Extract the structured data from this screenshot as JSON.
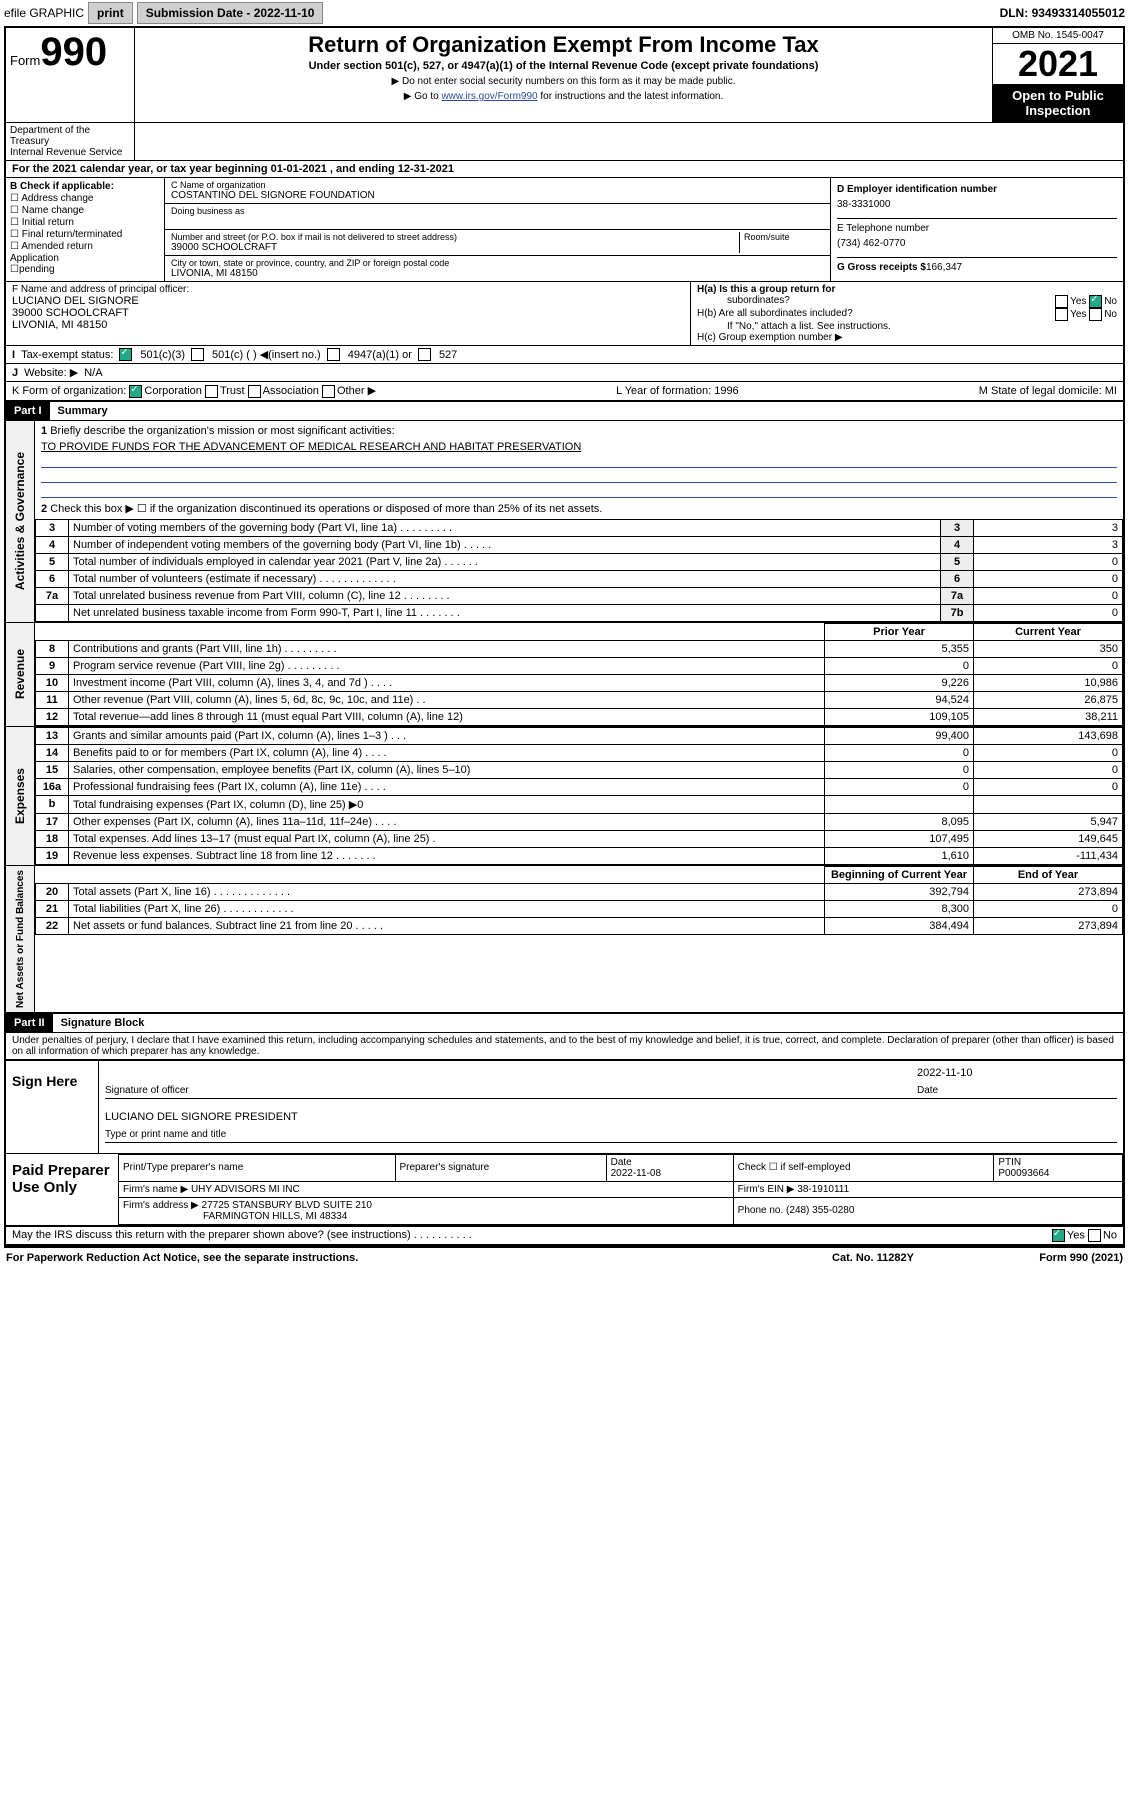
{
  "topbar": {
    "efile": "efile GRAPHIC",
    "print": "print",
    "subdate_lbl": "Submission Date - ",
    "subdate": "2022-11-10",
    "dln_lbl": "DLN: ",
    "dln": "93493314055012"
  },
  "header": {
    "form": "Form",
    "num": "990",
    "title": "Return of Organization Exempt From Income Tax",
    "sub": "Under section 501(c), 527, or 4947(a)(1) of the Internal Revenue Code (except private foundations)",
    "note1": "▶ Do not enter social security numbers on this form as it may be made public.",
    "note2_pre": "▶ Go to ",
    "note2_link": "www.irs.gov/Form990",
    "note2_post": " for instructions and the latest information.",
    "omb": "OMB No. 1545-0047",
    "year": "2021",
    "inspect": "Open to Public Inspection",
    "dept": "Department of the Treasury\nInternal Revenue Service"
  },
  "periodA": "For the 2021 calendar year, or tax year beginning 01-01-2021    , and ending 12-31-2021",
  "boxB": {
    "lbl": "B Check if applicable:",
    "opts": [
      "☐ Address change",
      "☐ Name change",
      "☐ Initial return",
      "☐ Final return/terminated",
      "☐ Amended return",
      "  Application\n☐pending"
    ]
  },
  "boxC": {
    "name_lbl": "C Name of organization",
    "name": "COSTANTINO DEL SIGNORE FOUNDATION",
    "dba_lbl": "Doing business as",
    "addr_lbl": "Number and street (or P.O. box if mail is not delivered to street address)",
    "room_lbl": "Room/suite",
    "addr": "39000 SCHOOLCRAFT",
    "city_lbl": "City or town, state or province, country, and ZIP or foreign postal code",
    "city": "LIVONIA, MI  48150"
  },
  "boxD": {
    "lbl": "D Employer identification number",
    "val": "38-3331000"
  },
  "boxE": {
    "lbl": "E Telephone number",
    "val": "(734) 462-0770"
  },
  "boxG": {
    "lbl": "G Gross receipts $",
    "val": "166,347"
  },
  "boxF": {
    "lbl": "F Name and address of principal officer:",
    "lines": [
      "LUCIANO DEL SIGNORE",
      "39000 SCHOOLCRAFT",
      "LIVONIA, MI  48150"
    ]
  },
  "boxH": {
    "a": "H(a)  Is this a group return for",
    "a2": "subordinates?",
    "b": "H(b)  Are all subordinates included?",
    "note": "If \"No,\" attach a list. See instructions.",
    "c": "H(c)  Group exemption number ▶",
    "yes": "Yes",
    "no": "No"
  },
  "boxI": {
    "lbl": "Tax-exempt status:",
    "c3": "501(c)(3)",
    "c": "501(c) (   ) ◀(insert no.)",
    "a1": "4947(a)(1) or",
    "s527": "527"
  },
  "boxJ": {
    "lbl": "Website: ▶",
    "val": "N/A"
  },
  "boxK": {
    "lbl": "K Form of organization:",
    "opts": [
      "Corporation",
      "Trust",
      "Association",
      "Other ▶"
    ]
  },
  "boxL": {
    "lbl": "L Year of formation:",
    "val": "1996"
  },
  "boxM": {
    "lbl": "M State of legal domicile:",
    "val": "MI"
  },
  "partI": {
    "hdr": "Part I",
    "title": "Summary"
  },
  "gov": {
    "label": "Activities & Governance",
    "line1": "Briefly describe the organization's mission or most significant activities:",
    "mission": "TO PROVIDE FUNDS FOR THE ADVANCEMENT OF MEDICAL RESEARCH AND HABITAT PRESERVATION",
    "line2": "Check this box ▶ ☐  if the organization discontinued its operations or disposed of more than 25% of its net assets.",
    "rows": [
      {
        "n": "3",
        "d": "Number of voting members of the governing body (Part VI, line 1a)   .    .    .    .    .    .    .    .    .",
        "b": "3",
        "v": "3"
      },
      {
        "n": "4",
        "d": "Number of independent voting members of the governing body (Part VI, line 1b)    .    .    .    .    .",
        "b": "4",
        "v": "3"
      },
      {
        "n": "5",
        "d": "Total number of individuals employed in calendar year 2021 (Part V, line 2a)    .    .    .    .    .    .",
        "b": "5",
        "v": "0"
      },
      {
        "n": "6",
        "d": "Total number of volunteers (estimate if necessary)    .    .    .    .    .    .    .    .    .    .    .    .    .",
        "b": "6",
        "v": "0"
      },
      {
        "n": "7a",
        "d": "Total unrelated business revenue from Part VIII, column (C), line 12    .    .    .    .    .    .    .    .",
        "b": "7a",
        "v": "0"
      },
      {
        "n": "",
        "d": "Net unrelated business taxable income from Form 990-T, Part I, line 11    .    .    .    .    .    .    .",
        "b": "7b",
        "v": "0"
      }
    ]
  },
  "rev": {
    "label": "Revenue",
    "th": [
      "Prior Year",
      "Current Year"
    ],
    "rows": [
      {
        "n": "8",
        "d": "Contributions and grants (Part VIII, line 1h)    .    .    .    .    .    .    .    .    .",
        "p": "5,355",
        "c": "350"
      },
      {
        "n": "9",
        "d": "Program service revenue (Part VIII, line 2g)    .    .    .    .    .    .    .    .    .",
        "p": "0",
        "c": "0"
      },
      {
        "n": "10",
        "d": "Investment income (Part VIII, column (A), lines 3, 4, and 7d )    .    .    .    .",
        "p": "9,226",
        "c": "10,986"
      },
      {
        "n": "11",
        "d": "Other revenue (Part VIII, column (A), lines 5, 6d, 8c, 9c, 10c, and 11e)    .    .",
        "p": "94,524",
        "c": "26,875"
      },
      {
        "n": "12",
        "d": "Total revenue—add lines 8 through 11 (must equal Part VIII, column (A), line 12)",
        "p": "109,105",
        "c": "38,211"
      }
    ]
  },
  "exp": {
    "label": "Expenses",
    "rows": [
      {
        "n": "13",
        "d": "Grants and similar amounts paid (Part IX, column (A), lines 1–3 )    .    .    .",
        "p": "99,400",
        "c": "143,698"
      },
      {
        "n": "14",
        "d": "Benefits paid to or for members (Part IX, column (A), line 4)    .    .    .    .",
        "p": "0",
        "c": "0"
      },
      {
        "n": "15",
        "d": "Salaries, other compensation, employee benefits (Part IX, column (A), lines 5–10)",
        "p": "0",
        "c": "0"
      },
      {
        "n": "16a",
        "d": "Professional fundraising fees (Part IX, column (A), line 11e)    .    .    .    .",
        "p": "0",
        "c": "0"
      },
      {
        "n": "b",
        "d": "Total fundraising expenses (Part IX, column (D), line 25) ▶0",
        "p": "",
        "c": "",
        "gray": true
      },
      {
        "n": "17",
        "d": "Other expenses (Part IX, column (A), lines 11a–11d, 11f–24e)    .    .    .    .",
        "p": "8,095",
        "c": "5,947"
      },
      {
        "n": "18",
        "d": "Total expenses. Add lines 13–17 (must equal Part IX, column (A), line 25)    .",
        "p": "107,495",
        "c": "149,645"
      },
      {
        "n": "19",
        "d": "Revenue less expenses. Subtract line 18 from line 12    .    .    .    .    .    .    .",
        "p": "1,610",
        "c": "-111,434"
      }
    ]
  },
  "net": {
    "label": "Net Assets or Fund Balances",
    "th": [
      "Beginning of Current Year",
      "End of Year"
    ],
    "rows": [
      {
        "n": "20",
        "d": "Total assets (Part X, line 16)    .    .    .    .    .    .    .    .    .    .    .    .    .",
        "p": "392,794",
        "c": "273,894"
      },
      {
        "n": "21",
        "d": "Total liabilities (Part X, line 26)    .    .    .    .    .    .    .    .    .    .    .    .",
        "p": "8,300",
        "c": "0"
      },
      {
        "n": "22",
        "d": "Net assets or fund balances. Subtract line 21 from line 20    .    .    .    .    .",
        "p": "384,494",
        "c": "273,894"
      }
    ]
  },
  "partII": {
    "hdr": "Part II",
    "title": "Signature Block"
  },
  "penalty": "Under penalties of perjury, I declare that I have examined this return, including accompanying schedules and statements, and to the best of my knowledge and belief, it is true, correct, and complete. Declaration of preparer (other than officer) is based on all information of which preparer has any knowledge.",
  "sign": {
    "lbl": "Sign Here",
    "date": "2022-11-10",
    "sig_lbl": "Signature of officer",
    "date_lbl": "Date",
    "name": "LUCIANO DEL SIGNORE  PRESIDENT",
    "name_lbl": "Type or print name and title"
  },
  "prep": {
    "lbl": "Paid Preparer Use Only",
    "h": [
      "Print/Type preparer's name",
      "Preparer's signature",
      "Date",
      "Check ☐ if self-employed",
      "PTIN"
    ],
    "date": "2022-11-08",
    "ptin": "P00093664",
    "firm_lbl": "Firm's name    ▶",
    "firm": "UHY ADVISORS MI INC",
    "ein_lbl": "Firm's EIN ▶",
    "ein": "38-1910111",
    "addr_lbl": "Firm's address ▶",
    "addr1": "27725 STANSBURY BLVD SUITE 210",
    "addr2": "FARMINGTON HILLS, MI  48334",
    "phone_lbl": "Phone no.",
    "phone": "(248) 355-0280"
  },
  "discuss": "May the IRS discuss this return with the preparer shown above? (see instructions)    .    .    .    .    .    .    .    .    .    .",
  "footer": {
    "pra": "For Paperwork Reduction Act Notice, see the separate instructions.",
    "cat": "Cat. No. 11282Y",
    "form": "Form 990 (2021)"
  }
}
